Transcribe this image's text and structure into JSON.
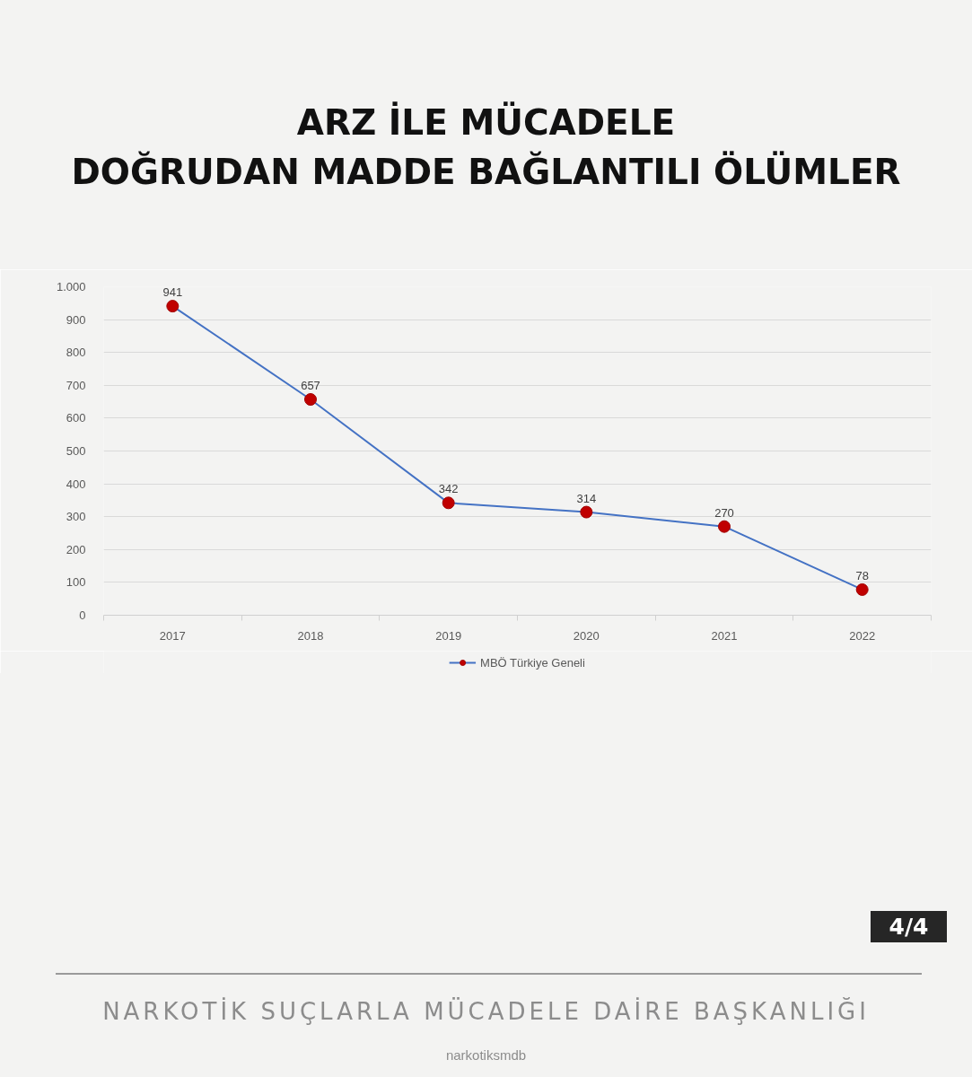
{
  "chart_data": {
    "type": "line",
    "title": "ARZ İLE MÜCADELE\nDOĞRUDAN MADDE BAĞLANTILI ÖLÜMLER",
    "categories": [
      "2017",
      "2018",
      "2019",
      "2020",
      "2021",
      "2022"
    ],
    "series": [
      {
        "name": "MBÖ Türkiye Geneli",
        "color": "#4472c4",
        "colors": [
          "#c00000",
          "#c00000",
          "#c00000",
          "#c00000",
          "#c00000",
          "#c00000"
        ],
        "values": [
          941,
          657,
          342,
          314,
          270,
          78
        ]
      }
    ],
    "ylim": [
      0,
      1000
    ],
    "yticks": [
      0,
      100,
      200,
      300,
      400,
      500,
      600,
      700,
      800,
      900,
      {
        "value": 1000,
        "label": "1.000"
      }
    ],
    "grid": "y",
    "legend": "bottom",
    "marker": "circle",
    "data_labels": true,
    "annotations": [
      "4/4",
      "NARKOTİK SUÇLARLA MÜCADELE DAİRE BAŞKANLIĞI",
      "narkotiksmdb"
    ]
  }
}
